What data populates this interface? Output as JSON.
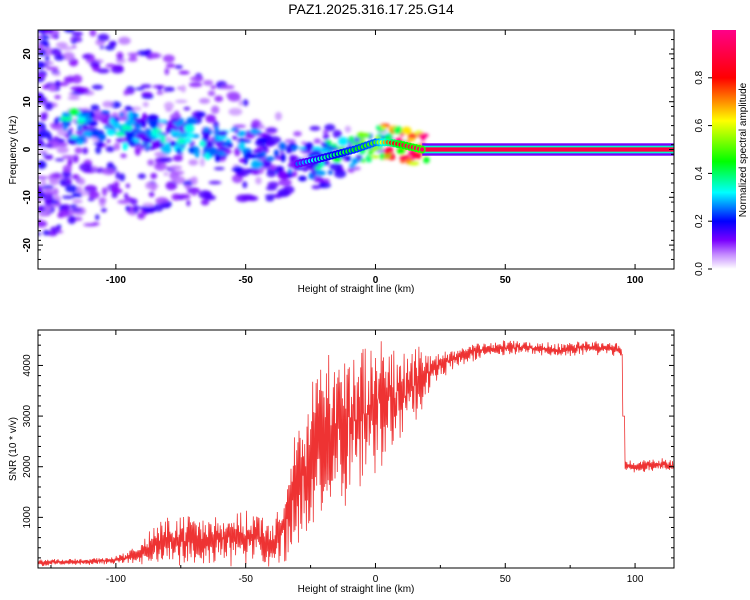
{
  "title": "PAZ1.2025.316.17.25.G14",
  "chart_data": [
    {
      "type": "heatmap",
      "name": "spectrogram",
      "xlabel": "Height of straight line (km)",
      "ylabel": "Frequency (Hz)",
      "xlim": [
        -130,
        115
      ],
      "ylim": [
        -25,
        25
      ],
      "x_ticks": [
        -100,
        -50,
        0,
        50,
        100
      ],
      "x_tick_labels": [
        "-100",
        "-50",
        "0",
        "50",
        "100"
      ],
      "y_ticks": [
        -20,
        -10,
        0,
        10,
        20
      ],
      "y_tick_labels": [
        "-20",
        "-10",
        "0",
        "10",
        "20"
      ],
      "ridge": {
        "x": [
          -115,
          -105,
          -95,
          -85,
          -75,
          -65,
          -55,
          -45,
          -38,
          -30,
          -22,
          -15,
          -8,
          0,
          5,
          10,
          18,
          115
        ],
        "y": [
          5,
          4.5,
          4,
          3.5,
          3,
          2,
          1,
          0,
          -2,
          -3,
          -2,
          -1,
          0,
          1.5,
          1.5,
          1,
          0,
          0
        ],
        "amplitude": [
          0.35,
          0.3,
          0.3,
          0.3,
          0.3,
          0.3,
          0.25,
          0.25,
          0.2,
          0.25,
          0.35,
          0.4,
          0.45,
          0.5,
          0.75,
          0.9,
          0.95,
          0.95
        ]
      },
      "colorbar": {
        "label": "Normalized spectral amplitude",
        "range": [
          0,
          1
        ],
        "ticks": [
          0.0,
          0.2,
          0.4,
          0.6,
          0.8
        ],
        "tick_labels": [
          "0.0",
          "0.2",
          "0.4",
          "0.6",
          "0.8"
        ]
      }
    },
    {
      "type": "line",
      "name": "snr",
      "xlabel": "Height of straight line (km)",
      "ylabel": "SNR (10 * v/v)",
      "xlim": [
        -130,
        115
      ],
      "ylim": [
        0,
        4700
      ],
      "x_ticks": [
        -100,
        -50,
        0,
        50,
        100
      ],
      "x_tick_labels": [
        "-100",
        "-50",
        "0",
        "50",
        "100"
      ],
      "y_ticks": [
        1000,
        2000,
        3000,
        4000
      ],
      "y_tick_labels": [
        "1000",
        "2000",
        "3000",
        "4000"
      ],
      "series": [
        {
          "name": "SNR",
          "color": "#ee3333",
          "x": [
            -130,
            -120,
            -110,
            -100,
            -92,
            -85,
            -75,
            -65,
            -55,
            -45,
            -40,
            -35,
            -30,
            -25,
            -20,
            -15,
            -10,
            -5,
            0,
            5,
            10,
            15,
            20,
            25,
            30,
            40,
            50,
            60,
            70,
            80,
            90,
            95,
            96,
            100,
            110,
            115
          ],
          "y": [
            100,
            120,
            130,
            160,
            250,
            450,
            600,
            500,
            600,
            650,
            400,
            900,
            1600,
            2100,
            2600,
            2800,
            2900,
            3000,
            3200,
            3400,
            3400,
            3600,
            3800,
            4000,
            4150,
            4300,
            4350,
            4350,
            4300,
            4350,
            4350,
            4300,
            2050,
            2000,
            2050,
            2000
          ],
          "noise": [
            60,
            60,
            60,
            70,
            150,
            350,
            450,
            400,
            450,
            450,
            400,
            700,
            1100,
            1300,
            1400,
            1300,
            1300,
            1200,
            1100,
            1000,
            900,
            700,
            400,
            250,
            180,
            150,
            130,
            120,
            120,
            120,
            120,
            120,
            100,
            100,
            100,
            100
          ]
        }
      ]
    }
  ]
}
